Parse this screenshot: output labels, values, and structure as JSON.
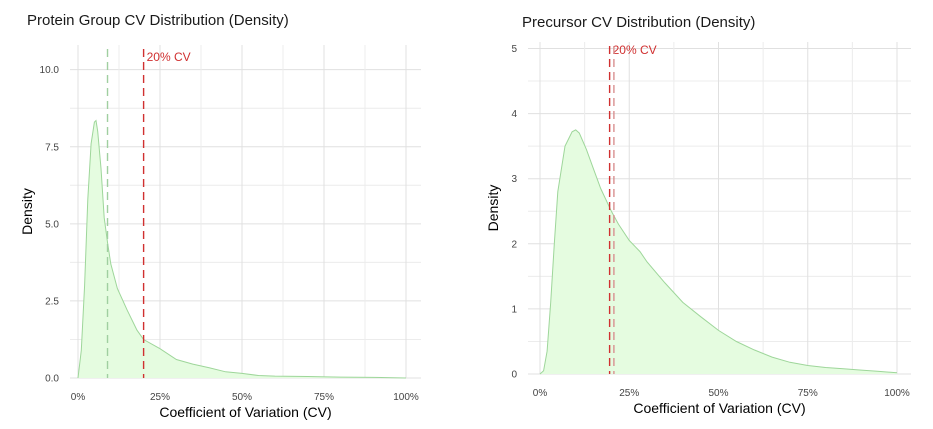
{
  "chart_data": [
    {
      "type": "area",
      "title": "Protein Group CV Distribution (Density)",
      "xlabel": "Coefficient of Variation (CV)",
      "ylabel": "Density",
      "xlim": [
        0,
        1
      ],
      "ylim": [
        0,
        10.8
      ],
      "x_ticks": [
        0,
        0.25,
        0.5,
        0.75,
        1
      ],
      "x_tick_labels": [
        "0%",
        "25%",
        "50%",
        "75%",
        "100%"
      ],
      "y_ticks": [
        0,
        2.5,
        5,
        7.5,
        10
      ],
      "y_tick_labels": [
        "0.0",
        "2.5",
        "5.0",
        "7.5",
        "10.0"
      ],
      "grid": true,
      "series": [
        {
          "x": [
            0.0,
            0.01,
            0.02,
            0.03,
            0.04,
            0.05,
            0.055,
            0.06,
            0.07,
            0.08,
            0.09,
            0.1,
            0.12,
            0.15,
            0.18,
            0.2,
            0.25,
            0.3,
            0.35,
            0.4,
            0.45,
            0.5,
            0.55,
            0.6,
            0.7,
            0.8,
            0.9,
            1.0
          ],
          "y": [
            0.0,
            0.9,
            3.0,
            5.8,
            7.6,
            8.3,
            8.35,
            8.0,
            6.8,
            5.2,
            4.4,
            3.7,
            2.9,
            2.2,
            1.55,
            1.25,
            0.95,
            0.6,
            0.45,
            0.33,
            0.2,
            0.15,
            0.08,
            0.06,
            0.05,
            0.03,
            0.02,
            0.0
          ]
        }
      ],
      "vlines": [
        {
          "x": 0.09,
          "color": "#a0cfa0",
          "label": ""
        },
        {
          "x": 0.2,
          "color": "#d03030",
          "label": "20% CV"
        }
      ],
      "colors": {
        "fill": "#e5fce0",
        "line": "#9ed69a",
        "cv": "#d03030"
      }
    },
    {
      "type": "area",
      "title": "Precursor CV Distribution (Density)",
      "xlabel": "Coefficient of Variation (CV)",
      "ylabel": "Density",
      "xlim": [
        0,
        1
      ],
      "ylim": [
        0,
        5.1
      ],
      "x_ticks": [
        0,
        0.25,
        0.5,
        0.75,
        1
      ],
      "x_tick_labels": [
        "0%",
        "25%",
        "50%",
        "75%",
        "100%"
      ],
      "y_ticks": [
        0,
        1,
        2,
        3,
        4,
        5
      ],
      "y_tick_labels": [
        "0",
        "1",
        "2",
        "3",
        "4",
        "5"
      ],
      "grid": true,
      "series": [
        {
          "x": [
            0.0,
            0.01,
            0.02,
            0.03,
            0.04,
            0.05,
            0.07,
            0.09,
            0.1,
            0.11,
            0.13,
            0.15,
            0.17,
            0.2,
            0.22,
            0.25,
            0.28,
            0.3,
            0.35,
            0.4,
            0.45,
            0.5,
            0.55,
            0.6,
            0.65,
            0.7,
            0.75,
            0.8,
            0.85,
            0.9,
            0.95,
            1.0
          ],
          "y": [
            0.0,
            0.05,
            0.35,
            1.1,
            2.0,
            2.8,
            3.5,
            3.72,
            3.75,
            3.7,
            3.45,
            3.15,
            2.85,
            2.5,
            2.3,
            2.05,
            1.88,
            1.72,
            1.4,
            1.1,
            0.88,
            0.67,
            0.5,
            0.37,
            0.26,
            0.18,
            0.13,
            0.1,
            0.08,
            0.06,
            0.04,
            0.02
          ]
        }
      ],
      "vlines": [
        {
          "x": 0.195,
          "color": "#d03030",
          "label": "20% CV"
        },
        {
          "x": 0.207,
          "color": "#d89090",
          "label": ""
        }
      ],
      "colors": {
        "fill": "#e5fce0",
        "line": "#9ed69a",
        "cv": "#d03030"
      }
    }
  ]
}
